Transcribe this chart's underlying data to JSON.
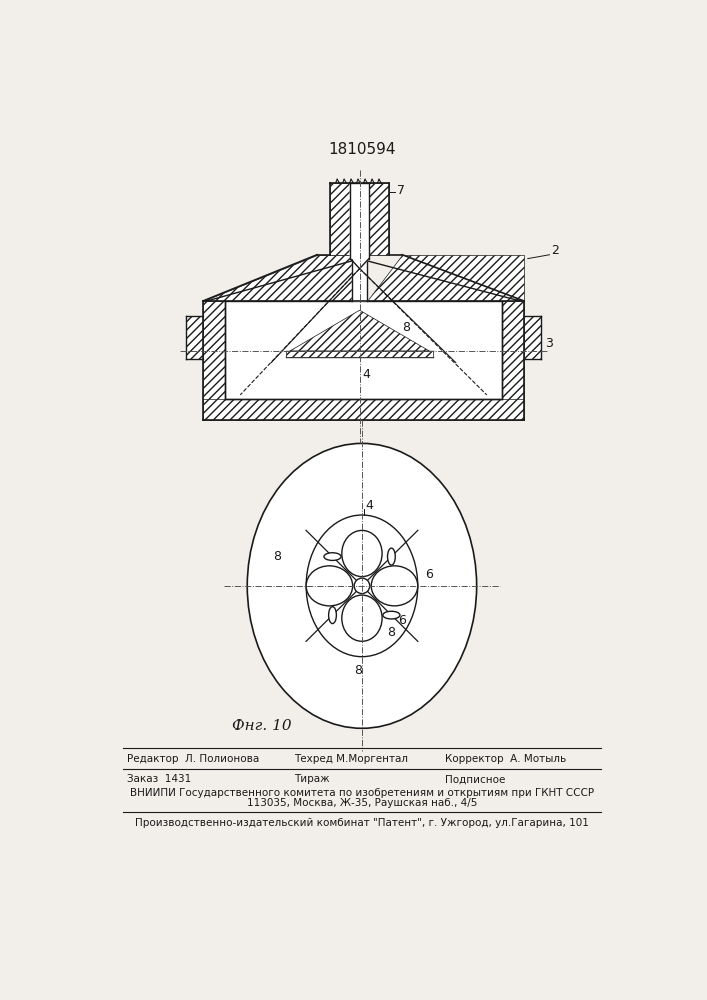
{
  "patent_number": "1810594",
  "fig_label": "Фнг. 10",
  "footer_line1_left": "Редактор  Л. Полионова",
  "footer_line1_mid": "Техред М.Моргентал",
  "footer_line1_right": "Корректор  А. Мотыль",
  "footer_line2_left": "Заказ  1431",
  "footer_line2_mid": "Тираж",
  "footer_line2_right": "Подписное",
  "footer_line3": "ВНИИПИ Государственного комитета по изобретениям и открытиям при ГКНТ СССР",
  "footer_line4": "113035, Москва, Ж-35, Раушская наб., 4/5",
  "footer_line5": "Производственно-издательский комбинат \"Патент\", г. Ужгород, ул.Гагарина, 101",
  "bg_color": "#f2efea",
  "line_color": "#1a1a1a"
}
